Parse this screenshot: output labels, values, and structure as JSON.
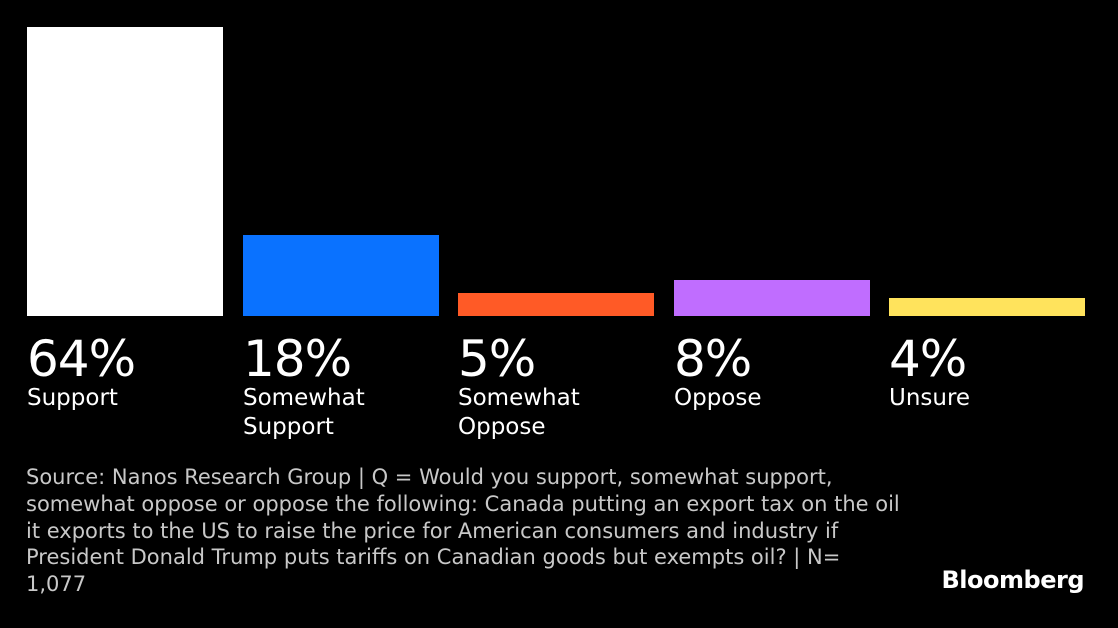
{
  "chart_data": {
    "type": "bar",
    "categories": [
      "Support",
      "Somewhat\nSupport",
      "Somewhat\nOppose",
      "Oppose",
      "Unsure"
    ],
    "values": [
      64,
      18,
      5,
      8,
      4
    ],
    "value_labels": [
      "64%",
      "18%",
      "5%",
      "8%",
      "4%"
    ],
    "colors": [
      "#ffffff",
      "#0a72ff",
      "#ff5a26",
      "#c06dff",
      "#ffe35c"
    ],
    "title": "",
    "xlabel": "",
    "ylabel": "",
    "ylim": [
      0,
      64
    ],
    "grid": false,
    "axes_visible": false
  },
  "footer": {
    "source": "Source: Nanos Research Group | Q = Would you support, somewhat support, somewhat oppose or oppose the following: Canada putting an export tax on the oil it exports to the US to raise the price for American consumers and industry if President Donald Trump puts tariffs on Canadian goods but exempts oil? | N= 1,077",
    "brand": "Bloomberg"
  },
  "theme": {
    "background": "#000000",
    "text": "#ffffff",
    "source_text": "#c8c8c8"
  }
}
